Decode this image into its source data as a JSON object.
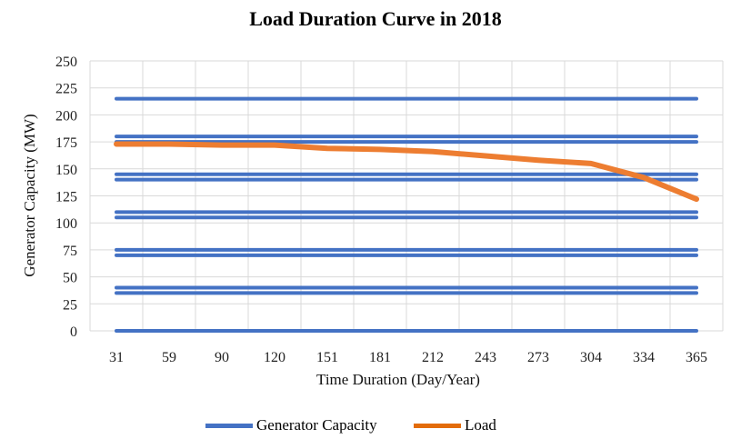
{
  "chart_data": {
    "type": "line",
    "title": "Load Duration Curve in 2018",
    "xlabel": "Time Duration (Day/Year)",
    "ylabel": "Generator Capacity (MW)",
    "ylim": [
      0,
      250
    ],
    "yticks": [
      "0",
      "25",
      "50",
      "75",
      "100",
      "125",
      "150",
      "175",
      "200",
      "225",
      "250"
    ],
    "categories": [
      "31",
      "59",
      "90",
      "120",
      "151",
      "181",
      "212",
      "243",
      "273",
      "304",
      "334",
      "365"
    ],
    "grid": true,
    "legend_position": "bottom",
    "series": [
      {
        "name": "Generator Capacity",
        "color": "#4472C4",
        "kind": "horizontal-levels",
        "levels": [
          0,
          35,
          40,
          70,
          75,
          105,
          110,
          140,
          145,
          175,
          180,
          215
        ]
      },
      {
        "name": "Load",
        "color": "#ED7D31",
        "values": [
          173,
          173,
          172,
          172,
          169,
          168,
          166,
          162,
          158,
          155,
          142,
          122
        ]
      }
    ]
  }
}
